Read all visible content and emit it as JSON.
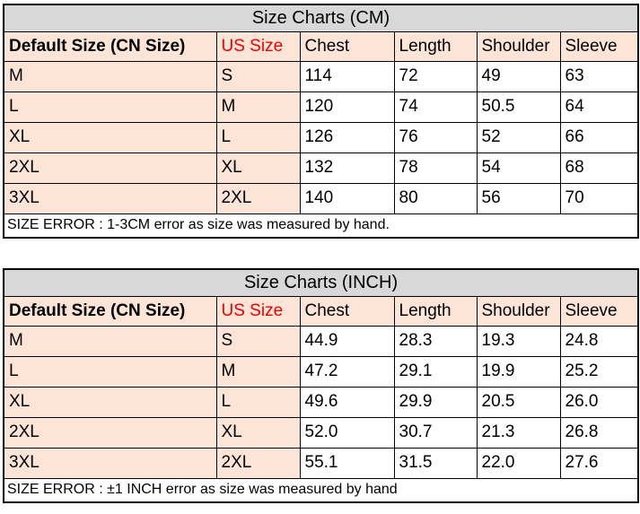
{
  "colors": {
    "title_bg": "#d8d8d8",
    "highlight_bg": "#fce4d6",
    "us_size_text": "#f00000",
    "border": "#000000"
  },
  "chart_data": [
    {
      "type": "table",
      "title": "Size Charts (CM)",
      "columns": [
        "Default Size (CN Size)",
        "US Size",
        "Chest",
        "Length",
        "Shoulder",
        "Sleeve"
      ],
      "rows": [
        [
          "M",
          "S",
          "114",
          "72",
          "49",
          "63"
        ],
        [
          "L",
          "M",
          "120",
          "74",
          "50.5",
          "64"
        ],
        [
          "XL",
          "L",
          "126",
          "76",
          "52",
          "66"
        ],
        [
          "2XL",
          "XL",
          "132",
          "78",
          "54",
          "68"
        ],
        [
          "3XL",
          "2XL",
          "140",
          "80",
          "56",
          "70"
        ]
      ],
      "footer": "SIZE ERROR : 1-3CM error as size was measured by hand."
    },
    {
      "type": "table",
      "title": "Size Charts (INCH)",
      "columns": [
        "Default Size (CN Size)",
        "US Size",
        "Chest",
        "Length",
        "Shoulder",
        "Sleeve"
      ],
      "rows": [
        [
          "M",
          "S",
          "44.9",
          "28.3",
          "19.3",
          "24.8"
        ],
        [
          "L",
          "M",
          "47.2",
          "29.1",
          "19.9",
          "25.2"
        ],
        [
          "XL",
          "L",
          "49.6",
          "29.9",
          "20.5",
          "26.0"
        ],
        [
          "2XL",
          "XL",
          "52.0",
          "30.7",
          "21.3",
          "26.8"
        ],
        [
          "3XL",
          "2XL",
          "55.1",
          "31.5",
          "22.0",
          "27.6"
        ]
      ],
      "footer": "SIZE ERROR : ±1 INCH error as size was measured by hand"
    }
  ]
}
